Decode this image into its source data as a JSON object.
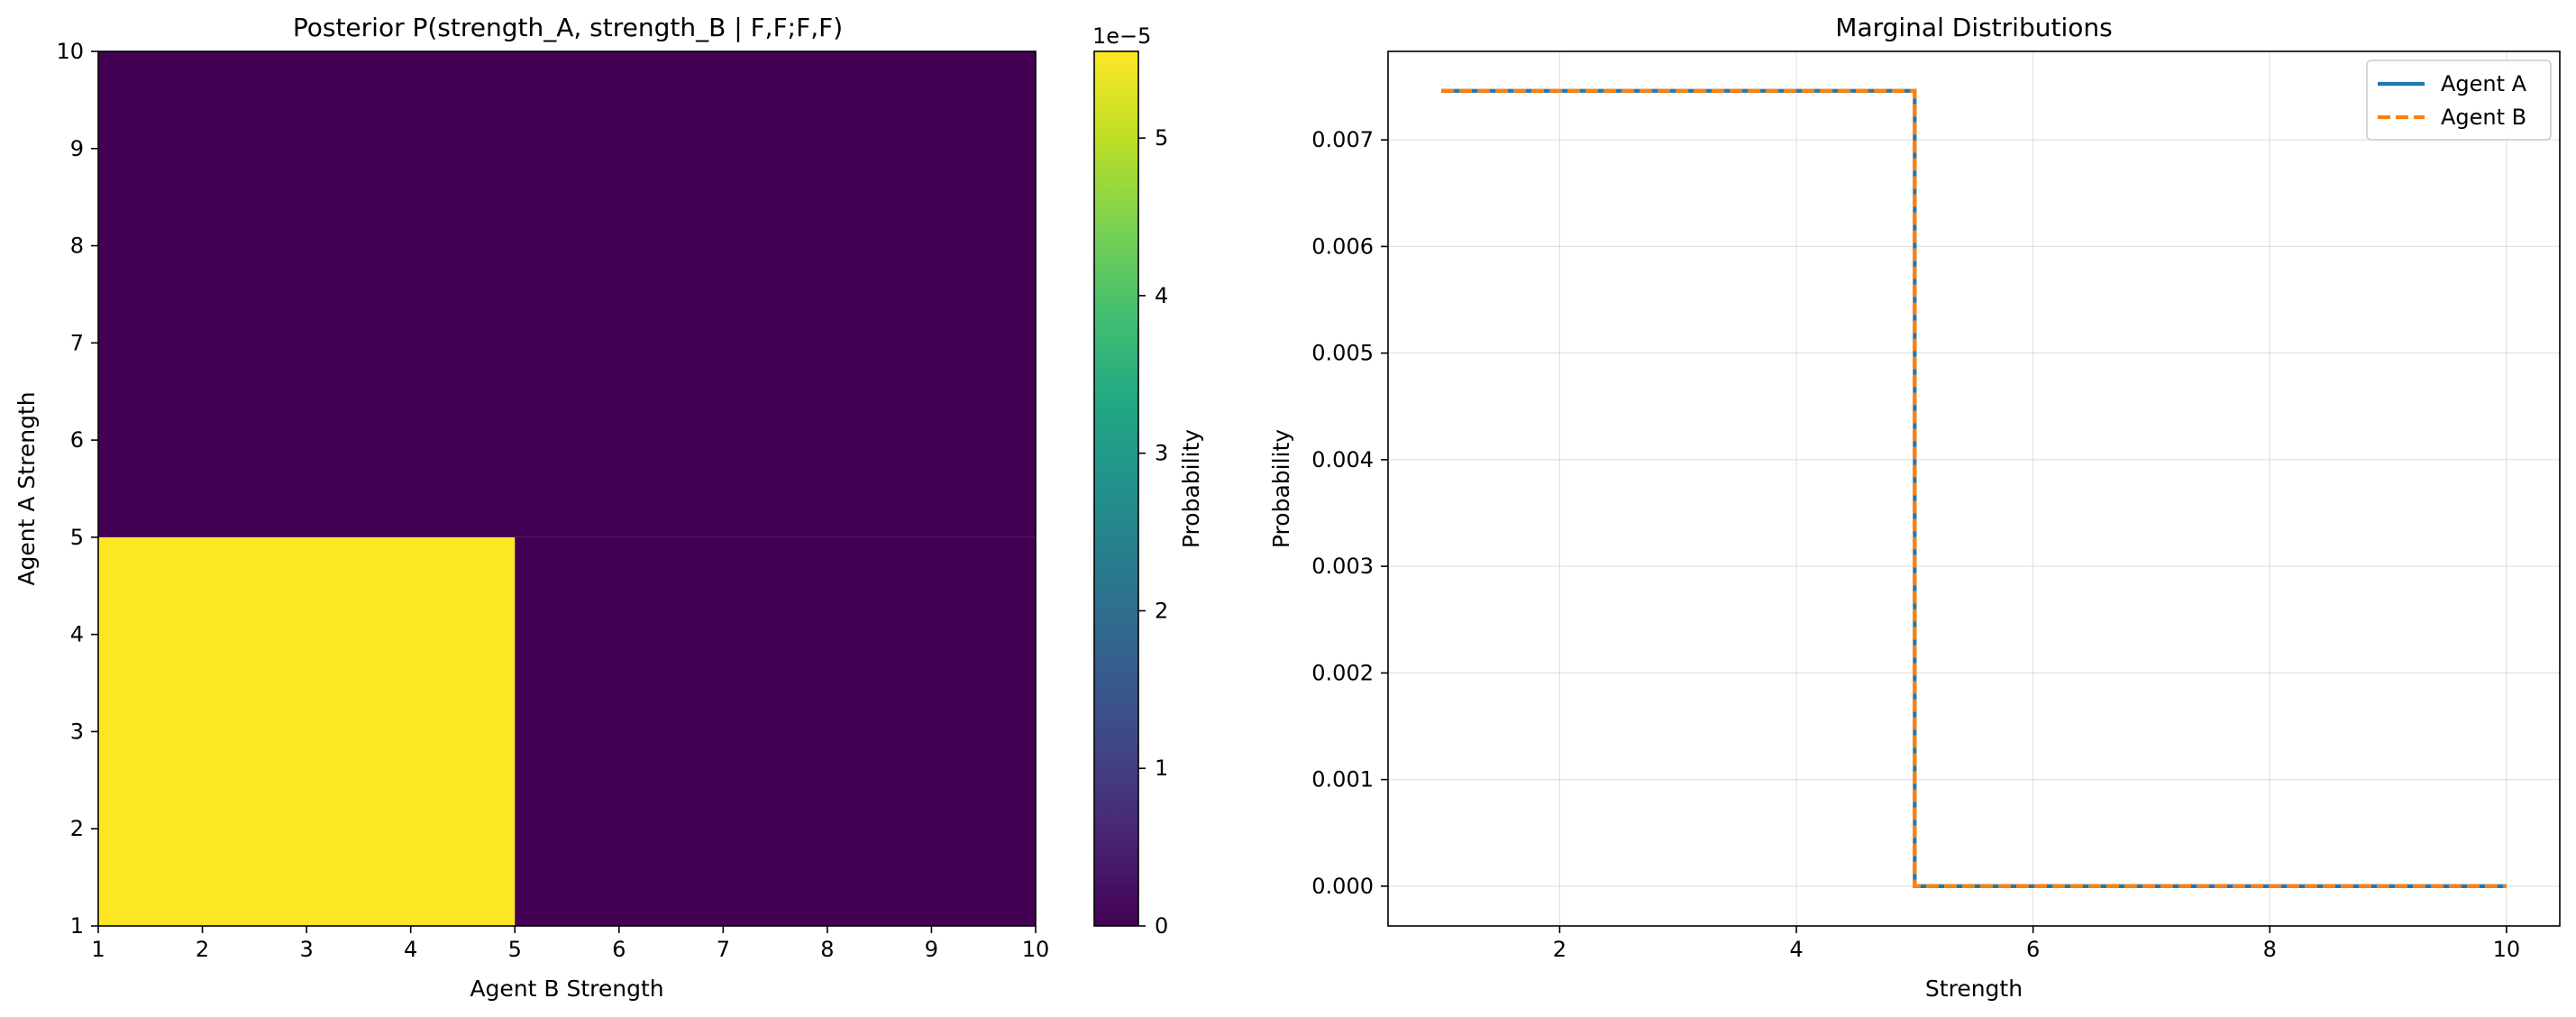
{
  "chart_data": [
    {
      "type": "heatmap",
      "title": "Posterior P(strength_A, strength_B | F,F;F,F)",
      "xlabel": "Agent B Strength",
      "ylabel": "Agent A Strength",
      "xlim": [
        1,
        10
      ],
      "ylim": [
        1,
        10
      ],
      "xticks": [
        1,
        2,
        3,
        4,
        5,
        6,
        7,
        8,
        9,
        10
      ],
      "yticks": [
        1,
        2,
        3,
        4,
        5,
        6,
        7,
        8,
        9,
        10
      ],
      "cells": [
        {
          "x": [
            1,
            5
          ],
          "y": [
            1,
            5
          ],
          "value": 5.55e-05
        },
        {
          "x": [
            5,
            10
          ],
          "y": [
            1,
            5
          ],
          "value": 0
        },
        {
          "x": [
            1,
            10
          ],
          "y": [
            5,
            10
          ],
          "value": 0
        }
      ],
      "colorbar": {
        "label": "Probability",
        "colormap": "viridis",
        "range": [
          0,
          5.55e-05
        ],
        "ticks": [
          0,
          1,
          2,
          3,
          4,
          5
        ],
        "tick_scale": 1e-05,
        "offset_label": "1e−5"
      }
    },
    {
      "type": "line",
      "title": "Marginal Distributions",
      "xlabel": "Strength",
      "ylabel": "Probability",
      "xlim": [
        0.55,
        10.45
      ],
      "ylim": [
        -0.000373,
        0.00783
      ],
      "xticks": [
        2,
        4,
        6,
        8,
        10
      ],
      "yticks": [
        0.0,
        0.001,
        0.002,
        0.003,
        0.004,
        0.005,
        0.006,
        0.007
      ],
      "ytick_labels": [
        "0.000",
        "0.001",
        "0.002",
        "0.003",
        "0.004",
        "0.005",
        "0.006",
        "0.007"
      ],
      "grid": true,
      "legend": "top-right",
      "series": [
        {
          "name": "Agent A",
          "color": "#1f77b4",
          "style": "solid",
          "x": [
            1,
            2,
            3,
            4,
            5,
            5,
            6,
            7,
            8,
            9,
            10
          ],
          "y": [
            0.00746,
            0.00746,
            0.00746,
            0.00746,
            0.00746,
            0,
            0,
            0,
            0,
            0,
            0
          ]
        },
        {
          "name": "Agent B",
          "color": "#ff7f0e",
          "style": "dashed",
          "x": [
            1,
            2,
            3,
            4,
            5,
            5,
            6,
            7,
            8,
            9,
            10
          ],
          "y": [
            0.00746,
            0.00746,
            0.00746,
            0.00746,
            0.00746,
            0,
            0,
            0,
            0,
            0,
            0
          ]
        }
      ]
    }
  ]
}
